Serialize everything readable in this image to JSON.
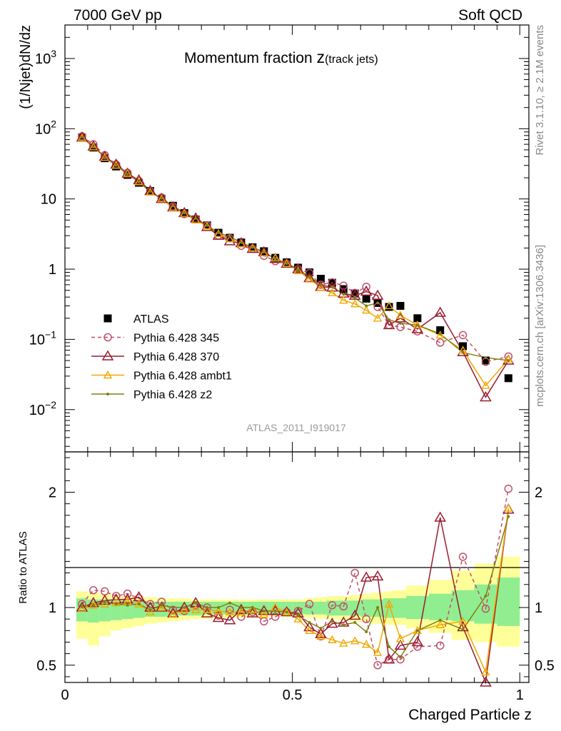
{
  "header": {
    "left": "7000 GeV pp",
    "right": "Soft QCD"
  },
  "side_labels": {
    "rivet": "Rivet 3.1.10, ≥ 2.1M events",
    "mcplots": "mcplots.cern.ch [arXiv:1306.3436]"
  },
  "chart_data": [
    {
      "type": "scatter",
      "title_main": "Momentum fraction ",
      "title_var": "z",
      "title_sub": "(track jets)",
      "ylabel": "(1/Njet)dN/dz",
      "yscale": "log",
      "ylim": [
        0.0025,
        3000
      ],
      "xlim": [
        0,
        1.02
      ],
      "yticks": [
        {
          "v": 0.01,
          "base": "10",
          "exp": "−2"
        },
        {
          "v": 0.1,
          "base": "10",
          "exp": "−1"
        },
        {
          "v": 1,
          "base": "1",
          "exp": ""
        },
        {
          "v": 10,
          "base": "10",
          "exp": ""
        },
        {
          "v": 100,
          "base": "10",
          "exp": "2"
        },
        {
          "v": 1000,
          "base": "10",
          "exp": "3"
        }
      ],
      "watermark": "ATLAS_2011_I919017",
      "legend_placement": "lower-left",
      "x": [
        0.0375,
        0.0625,
        0.0875,
        0.1125,
        0.1375,
        0.1625,
        0.1875,
        0.2125,
        0.2375,
        0.2625,
        0.2875,
        0.3125,
        0.3375,
        0.3625,
        0.3875,
        0.4125,
        0.4375,
        0.4625,
        0.4875,
        0.5125,
        0.5375,
        0.5625,
        0.5875,
        0.6125,
        0.6375,
        0.6625,
        0.6875,
        0.7125,
        0.7375,
        0.775,
        0.825,
        0.875,
        0.925,
        0.975
      ],
      "series": [
        {
          "name": "ATLAS",
          "color": "#000000",
          "marker": "square",
          "line": "none",
          "values": [
            75,
            54,
            38,
            29,
            22,
            17,
            13,
            10,
            8.0,
            6.3,
            5.1,
            4.2,
            3.3,
            2.8,
            2.4,
            2.05,
            1.8,
            1.45,
            1.25,
            1.05,
            0.9,
            0.73,
            0.64,
            0.52,
            0.45,
            0.38,
            0.33,
            0.29,
            0.3,
            0.2,
            0.135,
            0.08,
            0.05,
            0.028
          ]
        },
        {
          "name": "Pythia 6.428 345",
          "color": "#c0506a",
          "marker": "circle",
          "line": "dashed",
          "values": [
            78,
            60,
            42,
            31,
            23.5,
            18,
            13,
            10.5,
            7.8,
            6.1,
            5.2,
            4.2,
            3.0,
            2.75,
            2.15,
            1.95,
            1.55,
            1.3,
            1.2,
            1.0,
            0.88,
            0.6,
            0.65,
            0.58,
            0.46,
            0.56,
            0.29,
            0.16,
            0.15,
            0.13,
            0.09,
            0.115,
            0.048,
            0.057
          ]
        },
        {
          "name": "Pythia 6.428 370",
          "color": "#9b1b30",
          "marker": "triangle",
          "line": "solid",
          "values": [
            75,
            56,
            40,
            31,
            23,
            18.5,
            13,
            10,
            7.6,
            6.3,
            5.3,
            4.0,
            3.0,
            2.5,
            2.35,
            1.95,
            1.75,
            1.4,
            1.2,
            1.0,
            0.75,
            0.56,
            0.55,
            0.45,
            0.42,
            0.48,
            0.42,
            0.16,
            0.2,
            0.14,
            0.24,
            0.066,
            0.015,
            0.05
          ]
        },
        {
          "name": "Pythia 6.428 ambt1",
          "color": "#f0a800",
          "marker": "triangle-small",
          "line": "solid",
          "values": [
            74,
            55,
            39,
            30,
            23,
            17.5,
            12.5,
            10,
            7.5,
            6.2,
            5.0,
            4.1,
            3.2,
            2.7,
            2.3,
            2.0,
            1.7,
            1.45,
            1.2,
            0.95,
            0.72,
            0.55,
            0.46,
            0.36,
            0.32,
            0.26,
            0.2,
            0.3,
            0.22,
            0.16,
            0.115,
            0.07,
            0.022,
            0.052
          ]
        },
        {
          "name": "Pythia 6.428 z2",
          "color": "#808010",
          "marker": "dot",
          "line": "solid",
          "values": [
            76,
            55,
            40,
            30,
            22.5,
            17.5,
            12.8,
            10.2,
            8.0,
            6.3,
            5.3,
            4.2,
            3.3,
            2.9,
            2.4,
            2.05,
            1.75,
            1.4,
            1.2,
            0.98,
            0.78,
            0.6,
            0.56,
            0.44,
            0.39,
            0.3,
            0.33,
            0.19,
            0.17,
            0.16,
            0.12,
            0.065,
            0.055,
            0.05
          ]
        }
      ]
    },
    {
      "type": "scatter",
      "ylabel": "Ratio to ATLAS",
      "xlabel": "Charged Particle z",
      "ylim": [
        0.35,
        2.35
      ],
      "xlim": [
        0,
        1.02
      ],
      "yticks": [
        0.5,
        1,
        2
      ],
      "yticklabels": [
        "0.5",
        "1",
        "2"
      ],
      "xticks": [
        0,
        0.5,
        1
      ],
      "xticklabels": [
        "0",
        "0.5",
        "1"
      ],
      "reference_line": 1,
      "band_outer": {
        "color": "#ffff99",
        "lo": [
          0.73,
          0.67,
          0.75,
          0.8,
          0.82,
          0.84,
          0.86,
          0.87,
          0.88,
          0.89,
          0.9,
          0.9,
          0.91,
          0.91,
          0.91,
          0.92,
          0.92,
          0.92,
          0.92,
          0.92,
          0.91,
          0.9,
          0.9,
          0.89,
          0.88,
          0.87,
          0.86,
          0.85,
          0.85,
          0.82,
          0.78,
          0.72,
          0.7,
          0.66
        ],
        "hi": [
          1.14,
          1.13,
          1.12,
          1.11,
          1.1,
          1.09,
          1.09,
          1.08,
          1.08,
          1.08,
          1.07,
          1.07,
          1.07,
          1.07,
          1.07,
          1.07,
          1.07,
          1.07,
          1.07,
          1.07,
          1.08,
          1.09,
          1.1,
          1.1,
          1.11,
          1.12,
          1.13,
          1.14,
          1.15,
          1.19,
          1.24,
          1.32,
          1.38,
          1.44
        ]
      },
      "band_inner": {
        "color": "#90ee90",
        "lo": [
          0.88,
          0.87,
          0.88,
          0.89,
          0.9,
          0.91,
          0.92,
          0.92,
          0.93,
          0.93,
          0.93,
          0.94,
          0.94,
          0.94,
          0.94,
          0.94,
          0.94,
          0.94,
          0.94,
          0.94,
          0.94,
          0.94,
          0.93,
          0.93,
          0.93,
          0.92,
          0.92,
          0.91,
          0.91,
          0.9,
          0.89,
          0.88,
          0.86,
          0.84
        ],
        "hi": [
          1.08,
          1.07,
          1.07,
          1.06,
          1.06,
          1.06,
          1.05,
          1.05,
          1.05,
          1.05,
          1.05,
          1.05,
          1.05,
          1.05,
          1.05,
          1.05,
          1.05,
          1.05,
          1.05,
          1.05,
          1.05,
          1.05,
          1.06,
          1.06,
          1.06,
          1.07,
          1.07,
          1.08,
          1.08,
          1.1,
          1.12,
          1.15,
          1.2,
          1.26
        ]
      },
      "series": [
        {
          "name": "Pythia 6.428 345",
          "values": [
            1.03,
            1.15,
            1.14,
            1.1,
            1.12,
            1.08,
            1.03,
            1.05,
            0.98,
            0.97,
            1.02,
            1.0,
            0.93,
            0.98,
            0.92,
            0.96,
            0.88,
            0.92,
            0.96,
            0.97,
            1.03,
            0.75,
            1.02,
            1.01,
            1.3,
            0.9,
            0.5,
            0.55,
            0.55,
            0.66,
            0.67,
            1.44,
            0.99,
            2.03
          ]
        },
        {
          "name": "Pythia 6.428 370",
          "values": [
            1.0,
            1.04,
            1.06,
            1.07,
            1.07,
            1.09,
            1.0,
            1.0,
            0.95,
            1.0,
            1.04,
            0.95,
            0.91,
            0.89,
            0.98,
            0.95,
            0.97,
            0.97,
            0.96,
            0.95,
            0.83,
            0.77,
            0.86,
            0.87,
            0.93,
            1.26,
            1.27,
            0.55,
            0.67,
            0.7,
            1.78,
            0.83,
            0.3,
            1.85
          ]
        },
        {
          "name": "Pythia 6.428 ambt1",
          "values": [
            0.99,
            1.02,
            1.03,
            1.04,
            1.05,
            1.03,
            0.96,
            1.0,
            0.94,
            0.98,
            0.98,
            0.98,
            0.97,
            0.96,
            0.96,
            0.98,
            0.94,
            1.0,
            0.96,
            0.9,
            0.8,
            0.75,
            0.72,
            0.69,
            0.71,
            0.68,
            0.61,
            1.03,
            0.73,
            0.8,
            0.85,
            0.88,
            0.44,
            1.86
          ]
        },
        {
          "name": "Pythia 6.428 z2",
          "values": [
            1.01,
            1.02,
            1.05,
            1.03,
            1.02,
            1.03,
            0.98,
            1.02,
            1.0,
            1.0,
            1.04,
            1.0,
            1.0,
            1.04,
            1.0,
            1.0,
            0.97,
            0.97,
            0.96,
            0.93,
            0.87,
            0.82,
            0.88,
            0.85,
            0.87,
            0.79,
            1.0,
            0.66,
            0.57,
            0.8,
            0.89,
            0.81,
            1.1,
            1.79
          ]
        }
      ]
    }
  ]
}
